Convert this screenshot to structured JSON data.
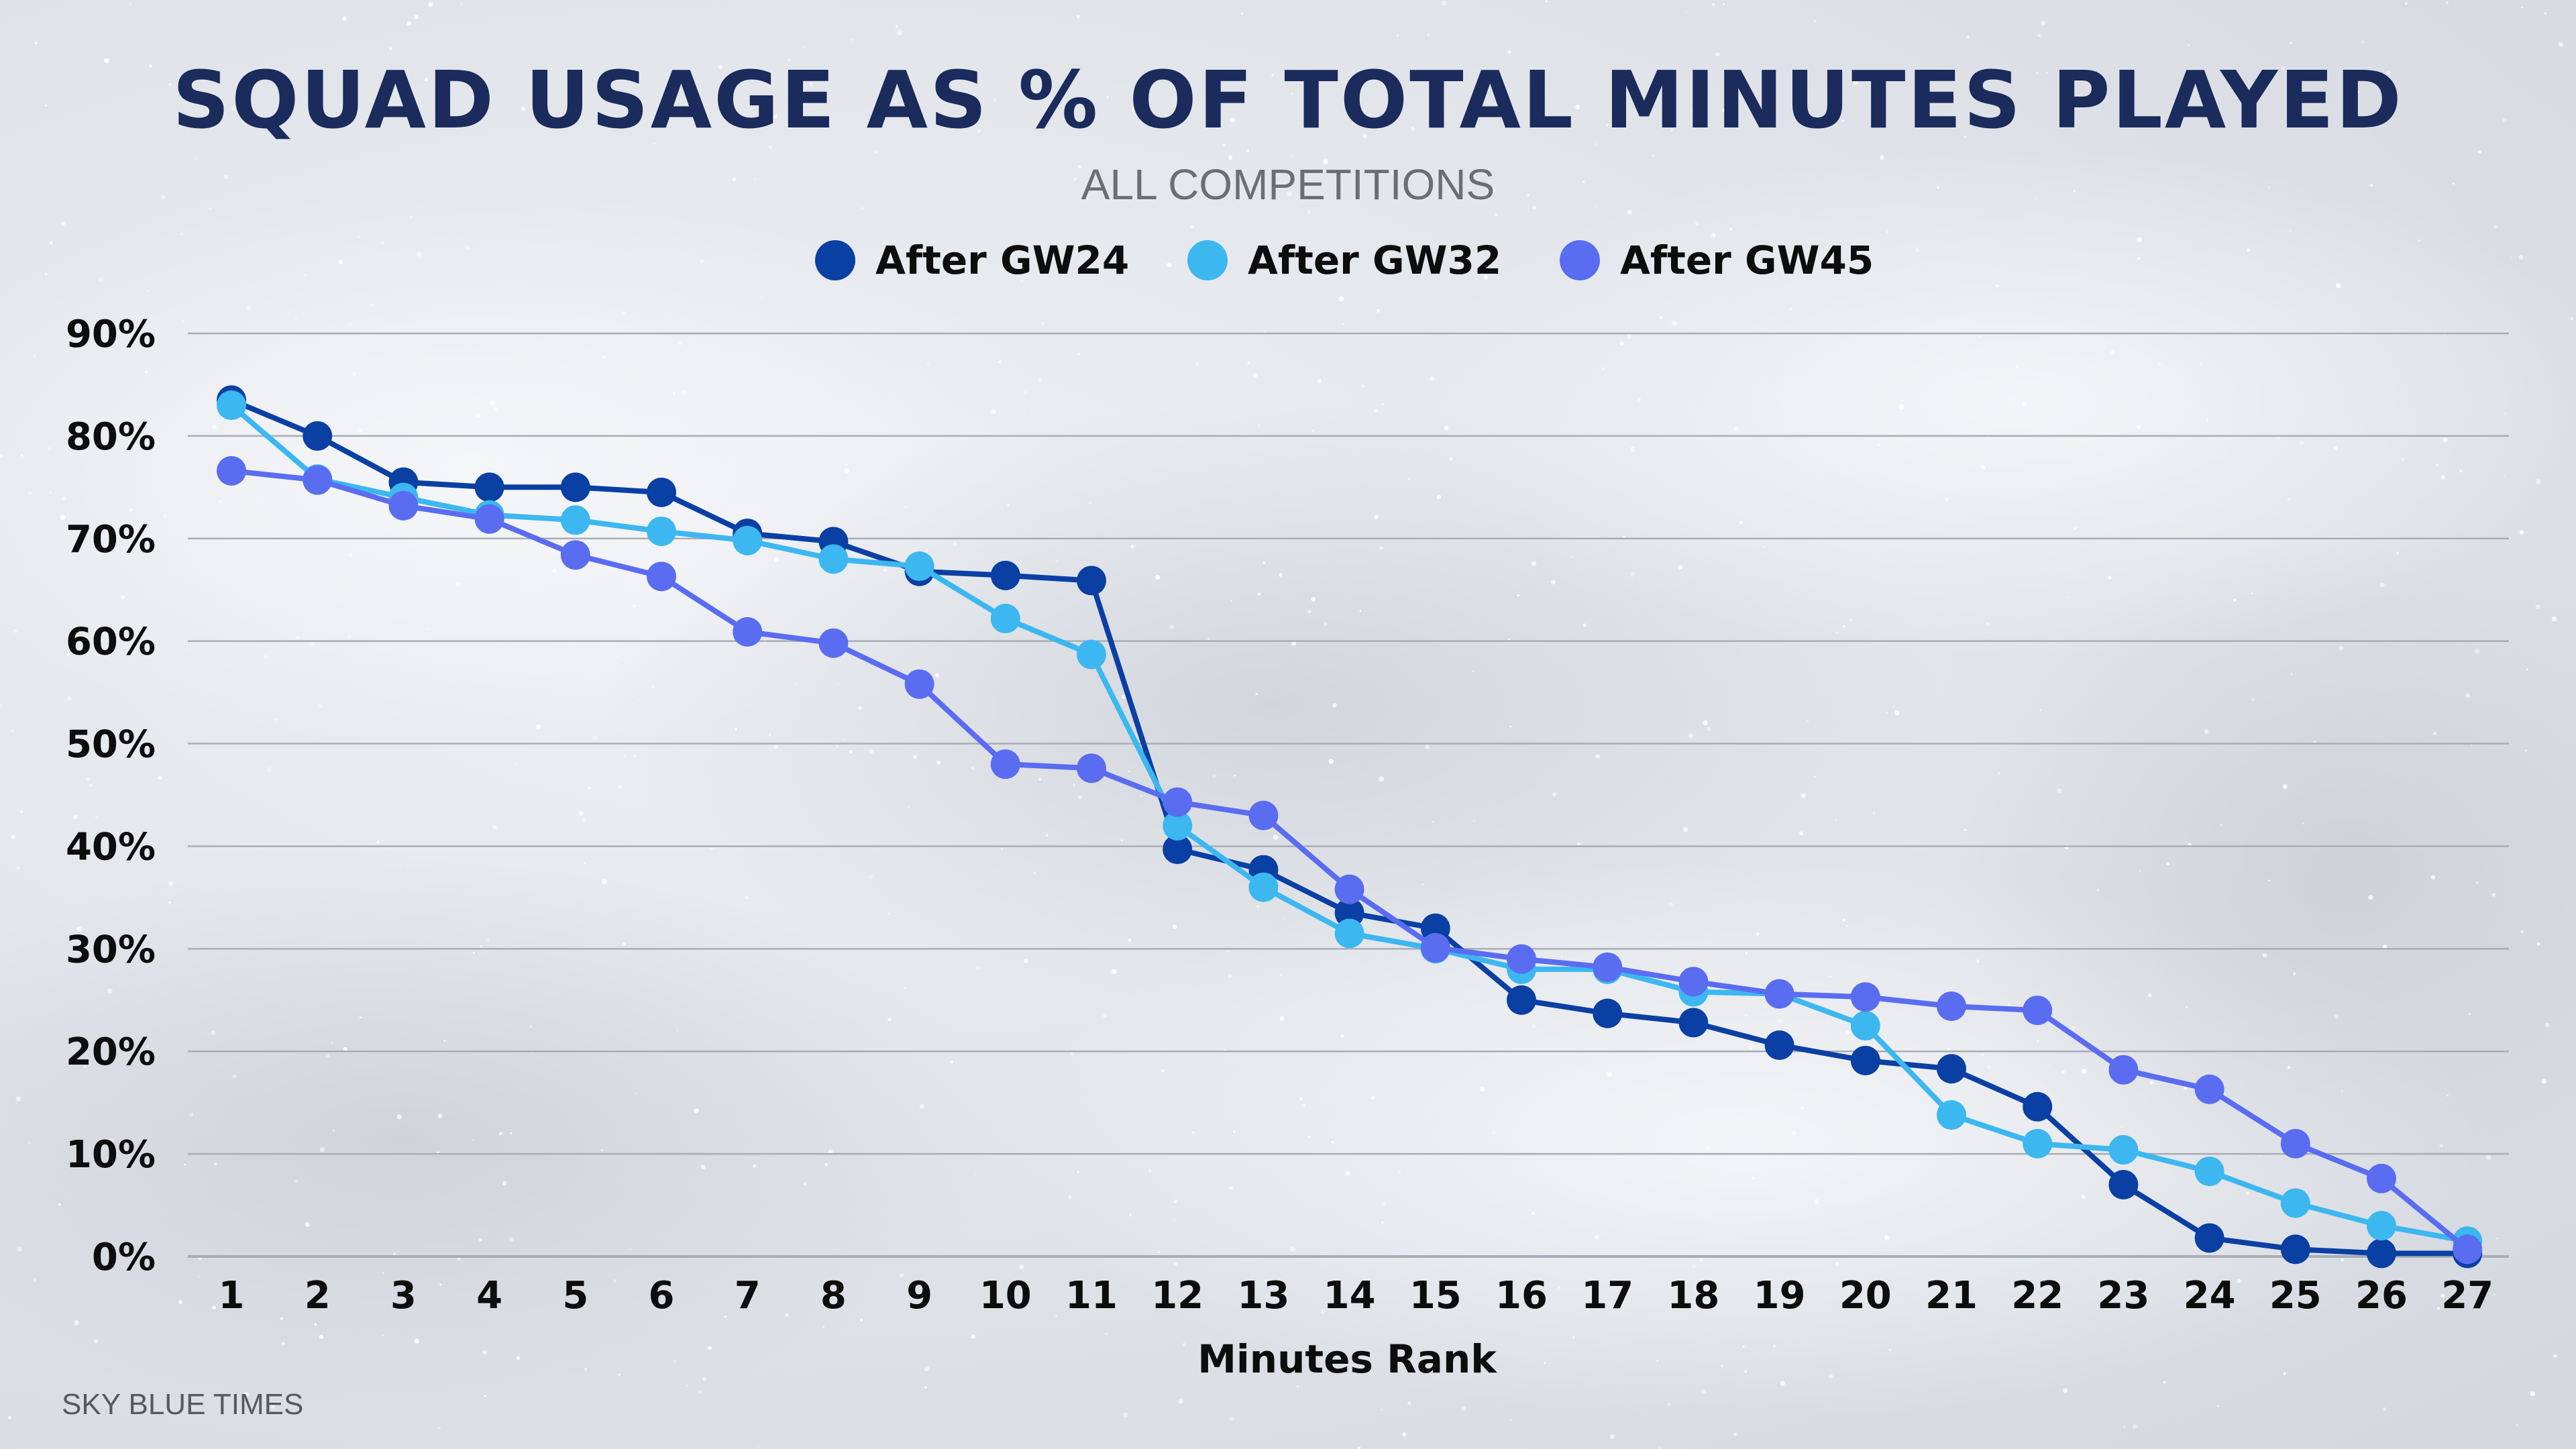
{
  "colors": {
    "title": "#1a2b5c",
    "subtitle": "#6b6e74",
    "axis_text": "#0d0d0d",
    "grid": "#a9adb4",
    "footer": "#555a61"
  },
  "footer": "SKY BLUE TIMES",
  "chart_data": {
    "type": "line",
    "title": "SQUAD USAGE AS % OF TOTAL MINUTES PLAYED",
    "subtitle": "ALL COMPETITIONS",
    "xlabel": "Minutes Rank",
    "ylabel": "",
    "ylim": [
      0,
      90
    ],
    "yticks": [
      0,
      10,
      20,
      30,
      40,
      50,
      60,
      70,
      80,
      90
    ],
    "ytick_labels": [
      "0%",
      "10%",
      "20%",
      "30%",
      "40%",
      "50%",
      "60%",
      "70%",
      "80%",
      "90%"
    ],
    "x": [
      1,
      2,
      3,
      4,
      5,
      6,
      7,
      8,
      9,
      10,
      11,
      12,
      13,
      14,
      15,
      16,
      17,
      18,
      19,
      20,
      21,
      22,
      23,
      24,
      25,
      26,
      27
    ],
    "x_labels": [
      "1",
      "2",
      "3",
      "4",
      "5",
      "6",
      "7",
      "8",
      "9",
      "10",
      "11",
      "12",
      "13",
      "14",
      "15",
      "16",
      "17",
      "18",
      "19",
      "20",
      "21",
      "22",
      "23",
      "24",
      "25",
      "26",
      "27"
    ],
    "legend_position": "top-center",
    "grid": true,
    "series": [
      {
        "name": "After GW24",
        "color": "#0a3fa3",
        "values": [
          83.5,
          80.0,
          75.5,
          75.0,
          75.0,
          74.5,
          70.5,
          69.7,
          66.8,
          66.4,
          65.9,
          39.7,
          37.7,
          33.5,
          32.0,
          25.0,
          23.7,
          22.8,
          20.6,
          19.1,
          18.3,
          14.6,
          7.0,
          1.8,
          0.7,
          0.3,
          0.3
        ]
      },
      {
        "name": "After GW32",
        "color": "#3cb7f0",
        "values": [
          83.0,
          75.8,
          74.0,
          72.3,
          71.8,
          70.7,
          69.8,
          68.0,
          67.3,
          62.2,
          58.7,
          42.0,
          36.0,
          31.5,
          30.0,
          28.0,
          28.0,
          25.8,
          25.6,
          22.5,
          13.8,
          11.0,
          10.4,
          8.3,
          5.2,
          3.0,
          1.5
        ]
      },
      {
        "name": "After GW45",
        "color": "#5a6cf0",
        "values": [
          76.6,
          75.7,
          73.2,
          71.9,
          68.4,
          66.3,
          60.9,
          59.8,
          55.8,
          48.0,
          47.6,
          44.3,
          43.0,
          35.8,
          30.1,
          29.0,
          28.2,
          26.8,
          25.6,
          25.3,
          24.4,
          24.0,
          18.2,
          16.3,
          11.0,
          7.6,
          0.7
        ]
      }
    ]
  }
}
